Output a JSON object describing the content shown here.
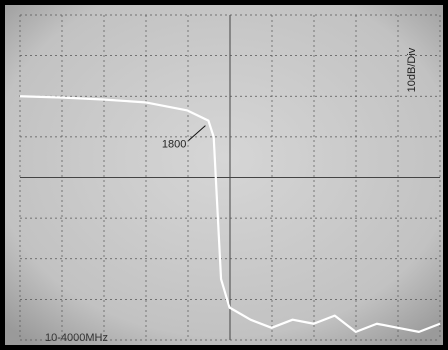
{
  "chart_data": {
    "type": "line",
    "x": [
      10,
      400,
      800,
      1200,
      1600,
      1800,
      1850,
      1880,
      1920,
      2000,
      2200,
      2400,
      2600,
      2800,
      3000,
      3200,
      3400,
      3600,
      3800,
      4000
    ],
    "series": [
      {
        "color": "#ffffff",
        "values": [
          -20,
          -20.3,
          -20.8,
          -21.5,
          -23.5,
          -26,
          -30,
          -45,
          -65,
          -72,
          -75,
          -77,
          -75,
          -76,
          -74,
          -78,
          -76,
          -77,
          -78,
          -76
        ]
      }
    ],
    "xlim": [
      10,
      4000
    ],
    "ylim": [
      -80,
      0
    ],
    "annotations": [
      "1800"
    ],
    "scale_label": "10dB/Div",
    "range_label": "10-4000MHz"
  }
}
